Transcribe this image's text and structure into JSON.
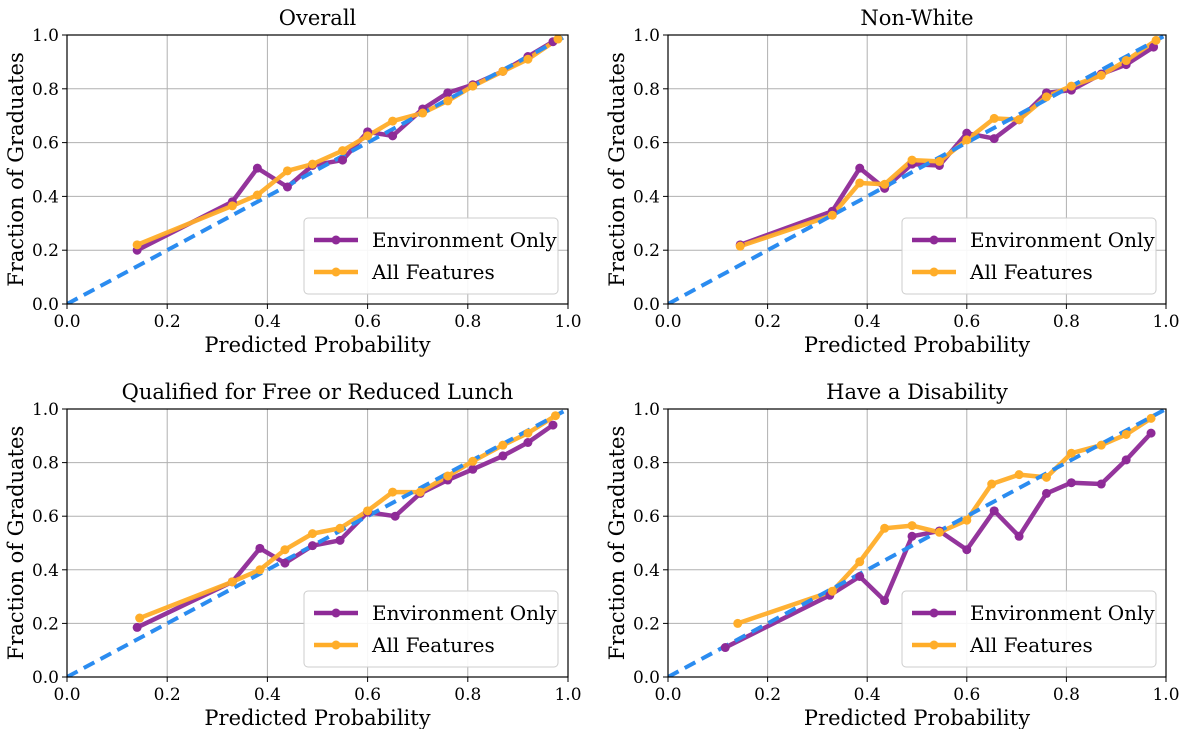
{
  "chart_data": [
    {
      "type": "line",
      "title": "Overall",
      "xlabel": "Predicted Probability",
      "ylabel": "Fraction of Graduates",
      "xlim": [
        0,
        1
      ],
      "ylim": [
        0,
        1
      ],
      "xticks": [
        "0.0",
        "0.2",
        "0.4",
        "0.6",
        "0.8",
        "1.0"
      ],
      "yticks": [
        "0.0",
        "0.2",
        "0.4",
        "0.6",
        "0.8",
        "1.0"
      ],
      "grid": true,
      "legend_position": "bottom-right",
      "series": [
        {
          "name": "Environment Only",
          "color": "#8e2a97",
          "x": [
            0.14,
            0.33,
            0.38,
            0.44,
            0.49,
            0.55,
            0.6,
            0.65,
            0.71,
            0.76,
            0.81,
            0.87,
            0.92,
            0.97
          ],
          "y": [
            0.2,
            0.38,
            0.505,
            0.435,
            0.515,
            0.535,
            0.64,
            0.625,
            0.725,
            0.785,
            0.815,
            0.865,
            0.92,
            0.975
          ]
        },
        {
          "name": "All Features",
          "color": "#ffad29",
          "x": [
            0.14,
            0.33,
            0.38,
            0.44,
            0.49,
            0.55,
            0.6,
            0.65,
            0.71,
            0.76,
            0.81,
            0.87,
            0.92,
            0.98
          ],
          "y": [
            0.22,
            0.365,
            0.405,
            0.495,
            0.52,
            0.57,
            0.625,
            0.68,
            0.71,
            0.755,
            0.81,
            0.865,
            0.91,
            0.985
          ]
        },
        {
          "name": "",
          "color": "#2b8cf0",
          "dashed": true,
          "x": [
            0,
            1
          ],
          "y": [
            0,
            1
          ]
        }
      ]
    },
    {
      "type": "line",
      "title": "Non-White",
      "xlabel": "Predicted Probability",
      "ylabel": "Fraction of Graduates",
      "xlim": [
        0,
        1
      ],
      "ylim": [
        0,
        1
      ],
      "xticks": [
        "0.0",
        "0.2",
        "0.4",
        "0.6",
        "0.8",
        "1.0"
      ],
      "yticks": [
        "0.0",
        "0.2",
        "0.4",
        "0.6",
        "0.8",
        "1.0"
      ],
      "grid": true,
      "legend_position": "bottom-right",
      "series": [
        {
          "name": "Environment Only",
          "color": "#8e2a97",
          "x": [
            0.145,
            0.33,
            0.385,
            0.435,
            0.49,
            0.545,
            0.6,
            0.655,
            0.705,
            0.76,
            0.81,
            0.87,
            0.92,
            0.975
          ],
          "y": [
            0.22,
            0.345,
            0.505,
            0.43,
            0.52,
            0.515,
            0.635,
            0.615,
            0.685,
            0.785,
            0.795,
            0.855,
            0.89,
            0.955
          ]
        },
        {
          "name": "All Features",
          "color": "#ffad29",
          "x": [
            0.145,
            0.33,
            0.385,
            0.435,
            0.49,
            0.545,
            0.6,
            0.655,
            0.705,
            0.76,
            0.81,
            0.87,
            0.92,
            0.98
          ],
          "y": [
            0.215,
            0.33,
            0.45,
            0.445,
            0.535,
            0.53,
            0.61,
            0.69,
            0.685,
            0.77,
            0.81,
            0.85,
            0.905,
            0.98
          ]
        },
        {
          "name": "",
          "color": "#2b8cf0",
          "dashed": true,
          "x": [
            0,
            1
          ],
          "y": [
            0,
            1
          ]
        }
      ]
    },
    {
      "type": "line",
      "title": "Qualified for Free or Reduced Lunch",
      "xlabel": "Predicted Probability",
      "ylabel": "Fraction of Graduates",
      "xlim": [
        0,
        1
      ],
      "ylim": [
        0,
        1
      ],
      "xticks": [
        "0.0",
        "0.2",
        "0.4",
        "0.6",
        "0.8",
        "1.0"
      ],
      "yticks": [
        "0.0",
        "0.2",
        "0.4",
        "0.6",
        "0.8",
        "1.0"
      ],
      "grid": true,
      "legend_position": "bottom-right",
      "series": [
        {
          "name": "Environment Only",
          "color": "#8e2a97",
          "x": [
            0.14,
            0.33,
            0.385,
            0.435,
            0.49,
            0.545,
            0.6,
            0.655,
            0.705,
            0.76,
            0.81,
            0.87,
            0.92,
            0.97
          ],
          "y": [
            0.185,
            0.355,
            0.48,
            0.425,
            0.49,
            0.51,
            0.615,
            0.6,
            0.685,
            0.735,
            0.775,
            0.825,
            0.875,
            0.94
          ]
        },
        {
          "name": "All Features",
          "color": "#ffad29",
          "x": [
            0.145,
            0.33,
            0.385,
            0.435,
            0.49,
            0.545,
            0.6,
            0.65,
            0.705,
            0.76,
            0.81,
            0.87,
            0.92,
            0.975
          ],
          "y": [
            0.22,
            0.355,
            0.4,
            0.475,
            0.535,
            0.555,
            0.62,
            0.69,
            0.69,
            0.75,
            0.805,
            0.865,
            0.91,
            0.975
          ]
        },
        {
          "name": "",
          "color": "#2b8cf0",
          "dashed": true,
          "x": [
            0,
            1
          ],
          "y": [
            0,
            1
          ]
        }
      ]
    },
    {
      "type": "line",
      "title": "Have a Disability",
      "xlabel": "Predicted Probability",
      "ylabel": "Fraction of Graduates",
      "xlim": [
        0,
        1
      ],
      "ylim": [
        0,
        1
      ],
      "xticks": [
        "0.0",
        "0.2",
        "0.4",
        "0.6",
        "0.8",
        "1.0"
      ],
      "yticks": [
        "0.0",
        "0.2",
        "0.4",
        "0.6",
        "0.8",
        "1.0"
      ],
      "grid": true,
      "legend_position": "bottom-right",
      "series": [
        {
          "name": "Environment Only",
          "color": "#8e2a97",
          "x": [
            0.115,
            0.325,
            0.385,
            0.435,
            0.49,
            0.545,
            0.6,
            0.655,
            0.705,
            0.76,
            0.81,
            0.87,
            0.92,
            0.97
          ],
          "y": [
            0.11,
            0.305,
            0.375,
            0.285,
            0.525,
            0.545,
            0.475,
            0.62,
            0.525,
            0.685,
            0.725,
            0.72,
            0.81,
            0.91
          ]
        },
        {
          "name": "All Features",
          "color": "#ffad29",
          "x": [
            0.14,
            0.33,
            0.385,
            0.435,
            0.49,
            0.545,
            0.6,
            0.65,
            0.705,
            0.76,
            0.81,
            0.87,
            0.92,
            0.97
          ],
          "y": [
            0.2,
            0.32,
            0.43,
            0.555,
            0.565,
            0.54,
            0.585,
            0.72,
            0.755,
            0.745,
            0.835,
            0.865,
            0.905,
            0.965
          ]
        },
        {
          "name": "",
          "color": "#2b8cf0",
          "dashed": true,
          "x": [
            0,
            1
          ],
          "y": [
            0,
            1
          ]
        }
      ]
    }
  ]
}
